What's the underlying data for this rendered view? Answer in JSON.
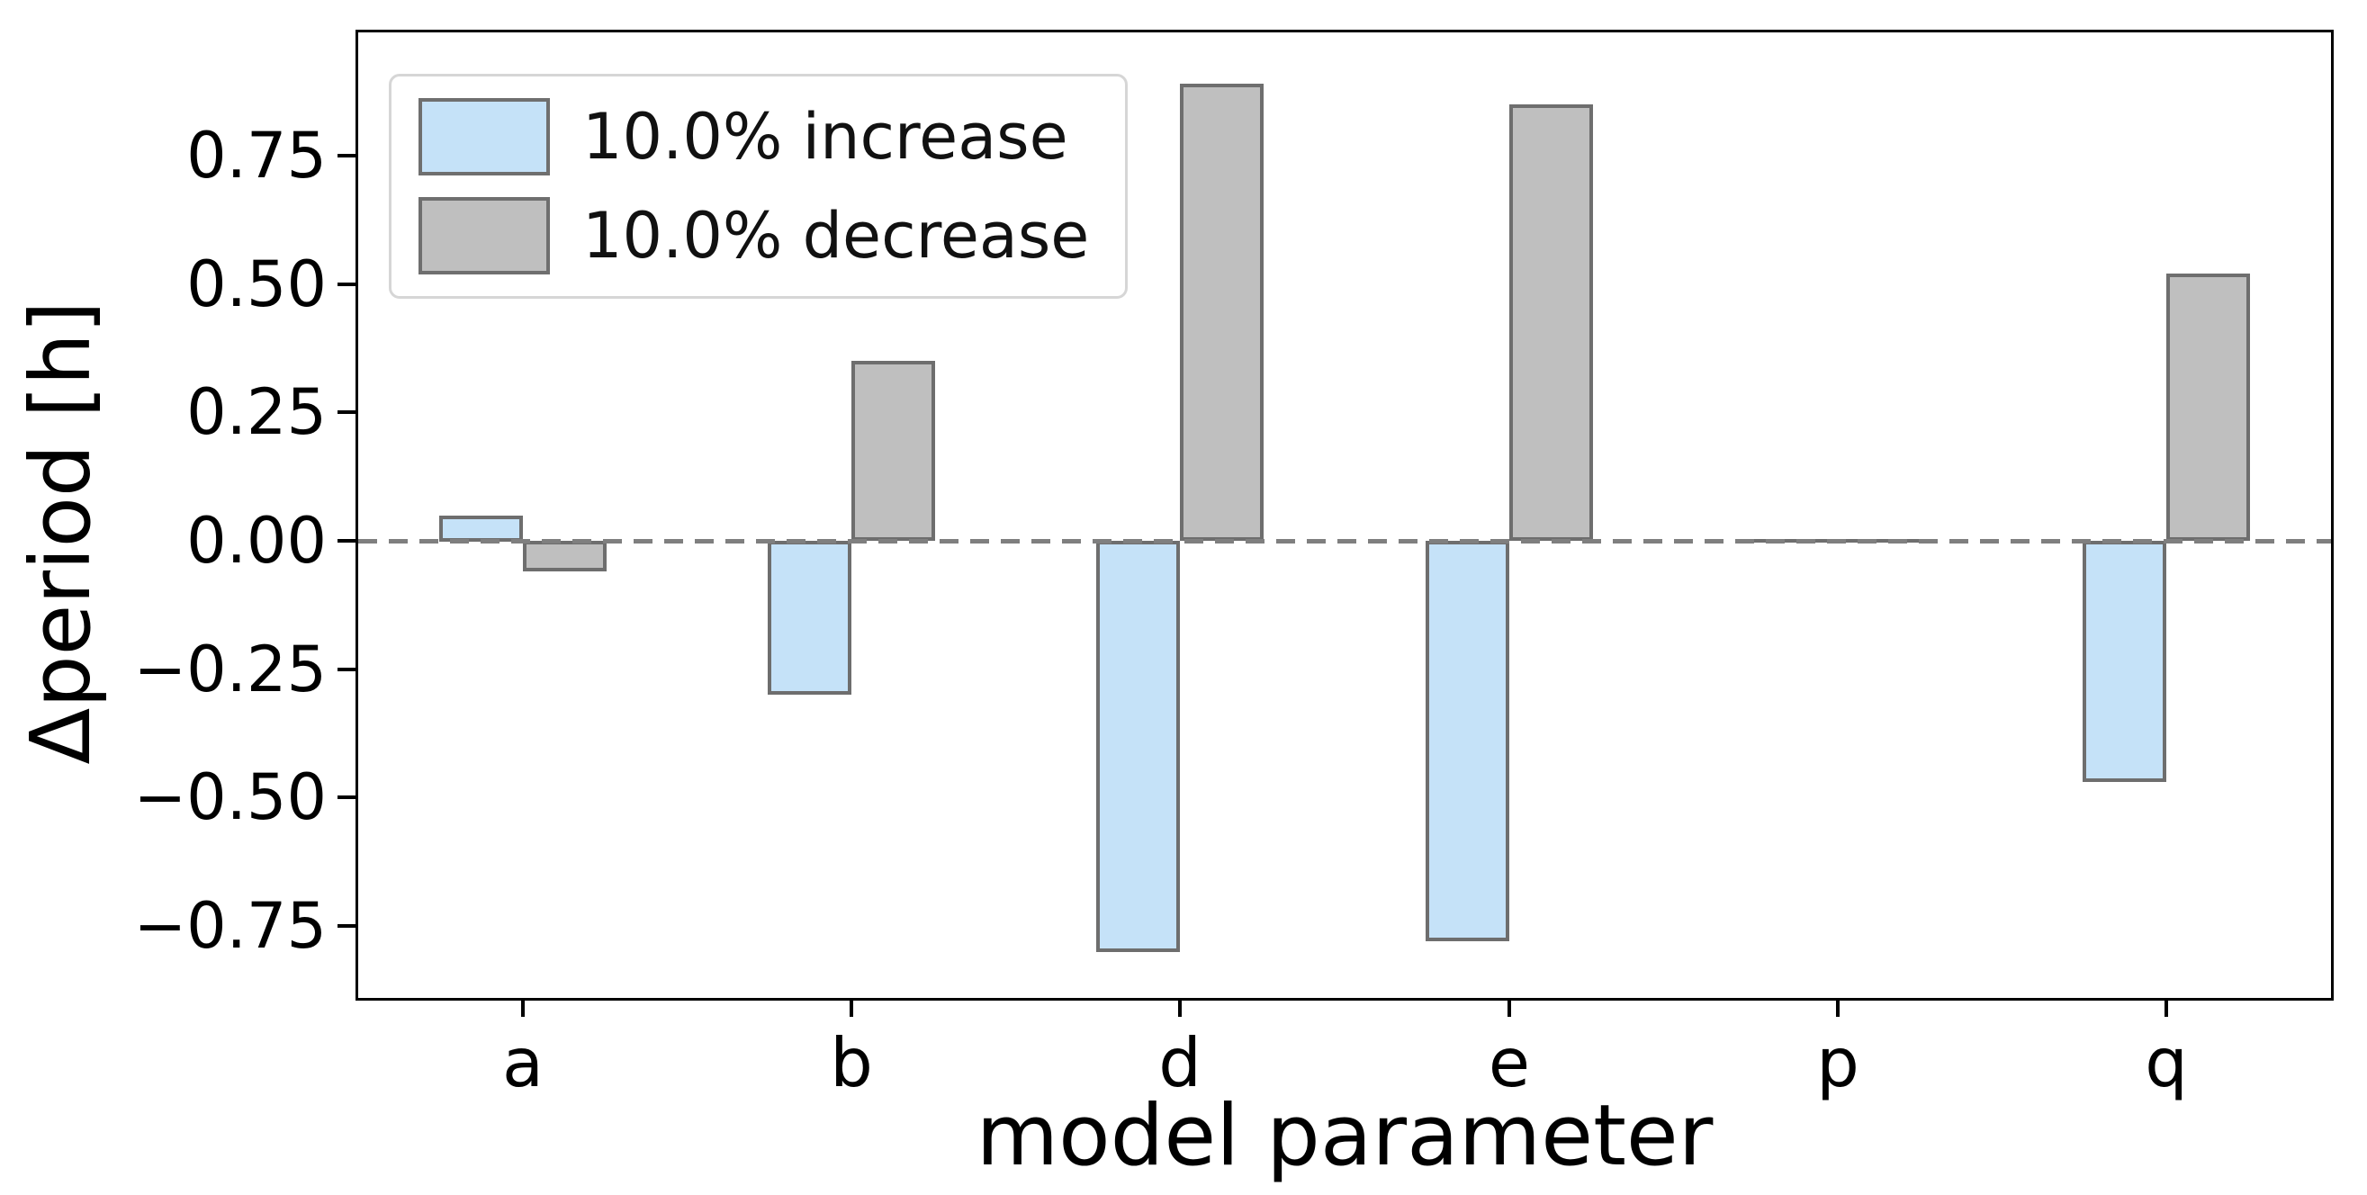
{
  "chart_data": {
    "type": "bar",
    "title": "",
    "xlabel": "model parameter",
    "ylabel": "Δperiod [h]",
    "categories": [
      "a",
      "b",
      "d",
      "e",
      "p",
      "q"
    ],
    "series": [
      {
        "name": "10.0% increase",
        "color": "#c5e2f8",
        "values": [
          0.05,
          -0.3,
          -0.8,
          -0.78,
          0.0,
          -0.47
        ]
      },
      {
        "name": "10.0% decrease",
        "color": "#bfbfbf",
        "values": [
          -0.06,
          0.35,
          0.89,
          0.85,
          0.0,
          0.52
        ]
      }
    ],
    "bar_edge_color": "#6e6e6e",
    "ylim": [
      -0.89,
      0.99
    ],
    "yticks": [
      0.75,
      0.5,
      0.25,
      0.0,
      -0.25,
      -0.5,
      -0.75
    ],
    "ytick_labels": [
      "0.75",
      "0.50",
      "0.25",
      "0.00",
      "−0.25",
      "−0.50",
      "−0.75"
    ],
    "zero_line": {
      "style": "dashed",
      "color": "#7f7f7f"
    },
    "legend_position": "upper left",
    "grid": false
  }
}
